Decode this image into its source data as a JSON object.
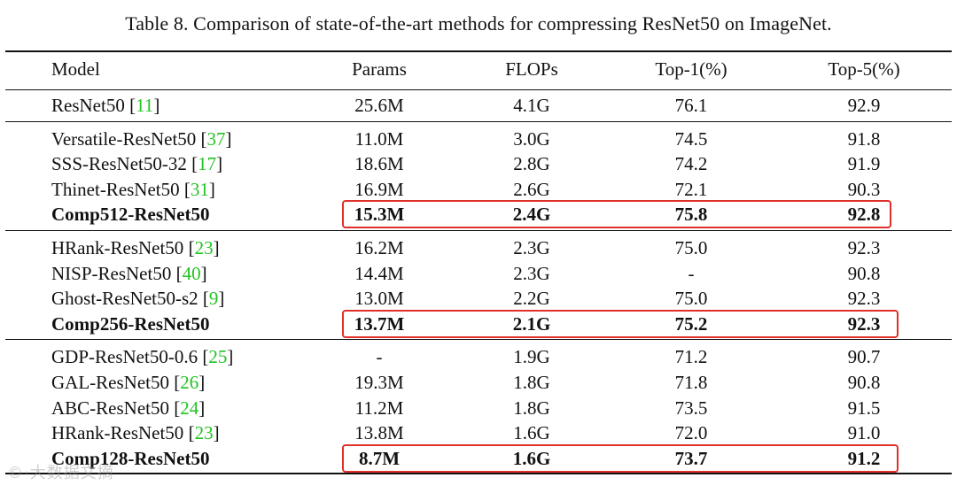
{
  "caption": "Table 8. Comparison of state-of-the-art methods for compressing ResNet50 on ImageNet.",
  "columns": [
    "Model",
    "Params",
    "FLOPs",
    "Top-1(%)",
    "Top-5(%)"
  ],
  "groups": [
    {
      "rows": [
        {
          "model": "ResNet50",
          "ref": "11",
          "params": "25.6M",
          "flops": "4.1G",
          "top1": "76.1",
          "top5": "92.9"
        }
      ]
    },
    {
      "rows": [
        {
          "model": "Versatile-ResNet50",
          "ref": "37",
          "params": "11.0M",
          "flops": "3.0G",
          "top1": "74.5",
          "top5": "91.8"
        },
        {
          "model": "SSS-ResNet50-32",
          "ref": "17",
          "params": "18.6M",
          "flops": "2.8G",
          "top1": "74.2",
          "top5": "91.9"
        },
        {
          "model": "Thinet-ResNet50",
          "ref": "31",
          "params": "16.9M",
          "flops": "2.6G",
          "top1": "72.1",
          "top5": "90.3"
        },
        {
          "model": "Comp512-ResNet50",
          "ref": "",
          "params": "15.3M",
          "flops": "2.4G",
          "top1": "75.8",
          "top5": "92.8",
          "bold": true,
          "highlight": true
        }
      ]
    },
    {
      "rows": [
        {
          "model": "HRank-ResNet50",
          "ref": "23",
          "params": "16.2M",
          "flops": "2.3G",
          "top1": "75.0",
          "top5": "92.3"
        },
        {
          "model": "NISP-ResNet50",
          "ref": "40",
          "params": "14.4M",
          "flops": "2.3G",
          "top1": "-",
          "top5": "90.8"
        },
        {
          "model": "Ghost-ResNet50-s2",
          "ref": "9",
          "params": "13.0M",
          "flops": "2.2G",
          "top1": "75.0",
          "top5": "92.3"
        },
        {
          "model": "Comp256-ResNet50",
          "ref": "",
          "params": "13.7M",
          "flops": "2.1G",
          "top1": "75.2",
          "top5": "92.3",
          "bold": true,
          "highlight": true
        }
      ]
    },
    {
      "rows": [
        {
          "model": "GDP-ResNet50-0.6",
          "ref": "25",
          "params": "-",
          "flops": "1.9G",
          "top1": "71.2",
          "top5": "90.7"
        },
        {
          "model": "GAL-ResNet50",
          "ref": "26",
          "params": "19.3M",
          "flops": "1.8G",
          "top1": "71.8",
          "top5": "90.8"
        },
        {
          "model": "ABC-ResNet50",
          "ref": "24",
          "params": "11.2M",
          "flops": "1.8G",
          "top1": "73.5",
          "top5": "91.5"
        },
        {
          "model": "HRank-ResNet50",
          "ref": "23",
          "params": "13.8M",
          "flops": "1.6G",
          "top1": "72.0",
          "top5": "91.0"
        },
        {
          "model": "Comp128-ResNet50",
          "ref": "",
          "params": "8.7M",
          "flops": "1.6G",
          "top1": "73.7",
          "top5": "91.2",
          "bold": true,
          "highlight": true
        }
      ]
    }
  ],
  "colors": {
    "ref": "#22c322",
    "highlight": "#e0302a"
  }
}
